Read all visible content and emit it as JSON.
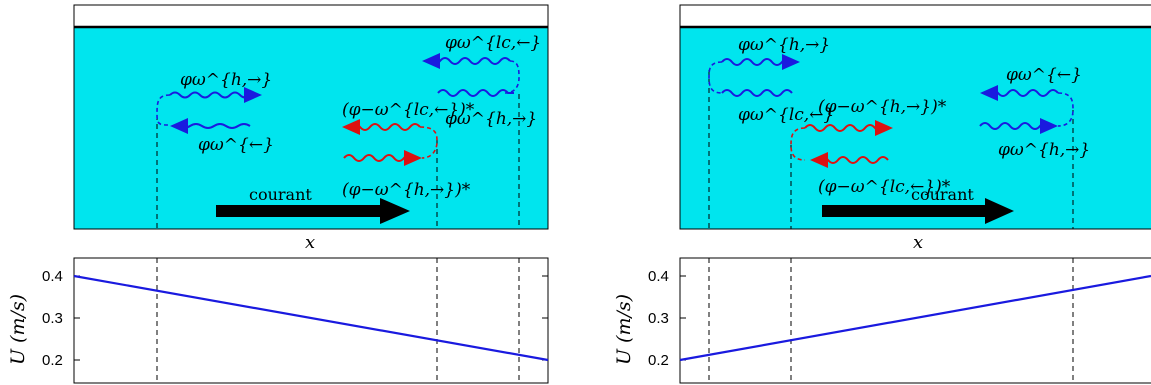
{
  "panels": [
    {
      "current_label": "courant",
      "x_axis_label": "x",
      "y_axis_label": "U (m/s)",
      "y_ticks": [
        "0.4",
        "0.3",
        "0.2"
      ],
      "waves": {
        "a": "φω^{h,→}",
        "b": "φω^{←}",
        "c": "(φ−ω^{lc,←})*",
        "d": "(φ−ω^{h,→})*",
        "e": "φω^{lc,←}",
        "f": "φω^{h,→}"
      },
      "line": {
        "start_value": 0.4,
        "end_value": 0.2
      }
    },
    {
      "current_label": "courant",
      "x_axis_label": "x",
      "y_axis_label": "U (m/s)",
      "y_ticks": [
        "0.4",
        "0.3",
        "0.2"
      ],
      "waves": {
        "a": "φω^{h,→}",
        "b": "φω^{lc,←}",
        "c": "(φ−ω^{h,→})*",
        "d": "(φ−ω^{lc,←})*",
        "e": "φω^{←}",
        "f": "φω^{h,→}"
      },
      "line": {
        "start_value": 0.2,
        "end_value": 0.4
      }
    }
  ],
  "colors": {
    "water": "#00e5ee",
    "blue_wave": "#1a1adf",
    "red_wave": "#dd1111",
    "line": "#1a1adf"
  }
}
